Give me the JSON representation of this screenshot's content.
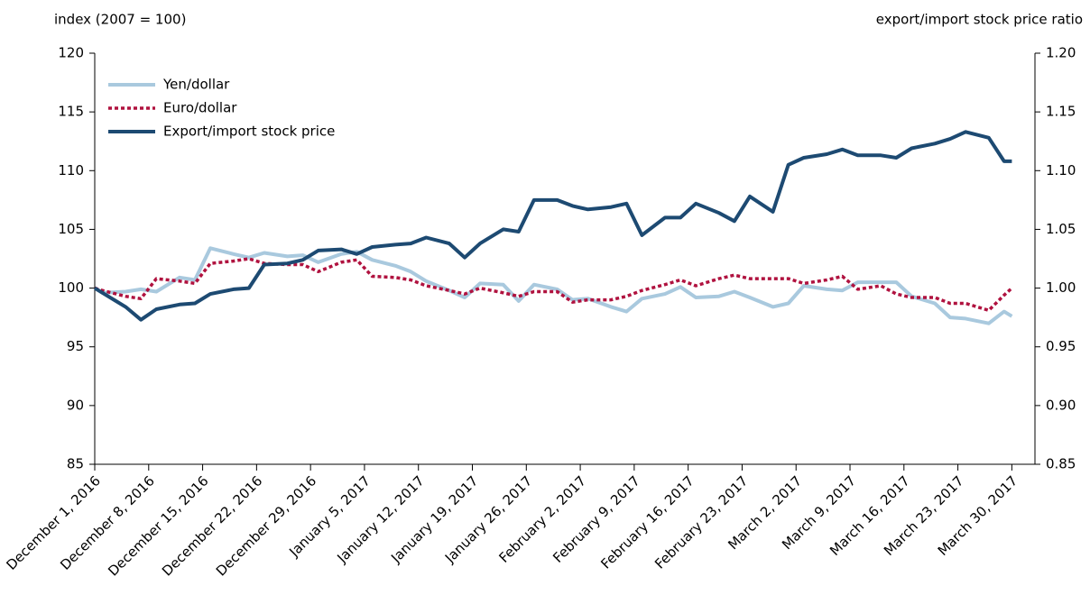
{
  "chart_data": {
    "type": "line",
    "ylabel": "index (2007 = 100)",
    "y2label": "export/import stock price ratio",
    "x": [
      "2016-12-01",
      "2016-12-02",
      "2016-12-05",
      "2016-12-07",
      "2016-12-09",
      "2016-12-12",
      "2016-12-14",
      "2016-12-16",
      "2016-12-19",
      "2016-12-21",
      "2016-12-23",
      "2016-12-26",
      "2016-12-28",
      "2016-12-30",
      "2017-01-02",
      "2017-01-04",
      "2017-01-06",
      "2017-01-09",
      "2017-01-11",
      "2017-01-13",
      "2017-01-16",
      "2017-01-18",
      "2017-01-20",
      "2017-01-23",
      "2017-01-25",
      "2017-01-27",
      "2017-01-30",
      "2017-02-01",
      "2017-02-03",
      "2017-02-06",
      "2017-02-08",
      "2017-02-10",
      "2017-02-13",
      "2017-02-15",
      "2017-02-17",
      "2017-02-20",
      "2017-02-22",
      "2017-02-24",
      "2017-02-27",
      "2017-03-01",
      "2017-03-03",
      "2017-03-06",
      "2017-03-08",
      "2017-03-10",
      "2017-03-13",
      "2017-03-15",
      "2017-03-17",
      "2017-03-20",
      "2017-03-22",
      "2017-03-24",
      "2017-03-27",
      "2017-03-29",
      "2017-03-30"
    ],
    "series": [
      {
        "name": "Yen/dollar",
        "color": "#a9c9de",
        "style": "solid",
        "axis": "y",
        "values": [
          100,
          99.6,
          99.7,
          99.9,
          99.7,
          100.9,
          100.7,
          103.4,
          102.9,
          102.6,
          103.0,
          102.7,
          102.8,
          102.2,
          102.9,
          103.1,
          102.4,
          101.9,
          101.4,
          100.6,
          99.8,
          99.2,
          100.4,
          100.3,
          98.9,
          100.3,
          99.9,
          99.0,
          99.1,
          98.4,
          98.0,
          99.1,
          99.5,
          100.1,
          99.2,
          99.3,
          99.7,
          99.2,
          98.4,
          98.7,
          100.2,
          99.9,
          99.8,
          100.5,
          100.5,
          100.5,
          99.3,
          98.7,
          97.5,
          97.4,
          97.0,
          98.0,
          97.6
        ]
      },
      {
        "name": "Euro/dollar",
        "color": "#b0123f",
        "style": "dotted",
        "axis": "y",
        "values": [
          100,
          99.8,
          99.3,
          99.1,
          100.8,
          100.6,
          100.4,
          102.1,
          102.3,
          102.5,
          102.1,
          102.0,
          102.0,
          101.4,
          102.2,
          102.4,
          101.0,
          100.9,
          100.7,
          100.2,
          99.8,
          99.5,
          100.0,
          99.6,
          99.3,
          99.7,
          99.7,
          98.8,
          99.0,
          99.0,
          99.3,
          99.8,
          100.3,
          100.7,
          100.2,
          100.8,
          101.1,
          100.8,
          100.8,
          100.8,
          100.4,
          100.7,
          101.0,
          99.9,
          100.2,
          99.5,
          99.2,
          99.2,
          98.7,
          98.7,
          98.1,
          99.4,
          100.0
        ]
      },
      {
        "name": "Export/import stock price",
        "color": "#1d4a72",
        "style": "solid",
        "axis": "y2",
        "values": [
          1.0,
          0.996,
          0.984,
          0.973,
          0.982,
          0.986,
          0.987,
          0.995,
          0.999,
          1.0,
          1.02,
          1.021,
          1.024,
          1.032,
          1.033,
          1.029,
          1.035,
          1.037,
          1.038,
          1.043,
          1.038,
          1.026,
          1.038,
          1.05,
          1.048,
          1.075,
          1.075,
          1.07,
          1.067,
          1.069,
          1.072,
          1.045,
          1.06,
          1.06,
          1.072,
          1.064,
          1.057,
          1.078,
          1.065,
          1.105,
          1.111,
          1.114,
          1.118,
          1.113,
          1.113,
          1.111,
          1.119,
          1.123,
          1.127,
          1.133,
          1.128,
          1.108,
          1.108
        ]
      }
    ],
    "xlim": [
      "2016-12-01",
      "2017-04-02"
    ],
    "xticks": [
      {
        "value": "2016-12-01",
        "label": "December 1, 2016"
      },
      {
        "value": "2016-12-08",
        "label": "December 8, 2016"
      },
      {
        "value": "2016-12-15",
        "label": "December 15, 2016"
      },
      {
        "value": "2016-12-22",
        "label": "December 22, 2016"
      },
      {
        "value": "2016-12-29",
        "label": "December 29, 2016"
      },
      {
        "value": "2017-01-05",
        "label": "January 5, 2017"
      },
      {
        "value": "2017-01-12",
        "label": "January 12, 2017"
      },
      {
        "value": "2017-01-19",
        "label": "January 19, 2017"
      },
      {
        "value": "2017-01-26",
        "label": "January 26, 2017"
      },
      {
        "value": "2017-02-02",
        "label": "February 2, 2017"
      },
      {
        "value": "2017-02-09",
        "label": "February 9, 2017"
      },
      {
        "value": "2017-02-16",
        "label": "February 16, 2017"
      },
      {
        "value": "2017-02-23",
        "label": "February 23, 2017"
      },
      {
        "value": "2017-03-02",
        "label": "March 2, 2017"
      },
      {
        "value": "2017-03-09",
        "label": "March 9, 2017"
      },
      {
        "value": "2017-03-16",
        "label": "March 16, 2017"
      },
      {
        "value": "2017-03-23",
        "label": "March 23, 2017"
      },
      {
        "value": "2017-03-30",
        "label": "March 30, 2017"
      }
    ],
    "ylim": [
      85,
      120
    ],
    "yticks": [
      85,
      90,
      95,
      100,
      105,
      110,
      115,
      120
    ],
    "y2lim": [
      0.85,
      1.2
    ],
    "y2ticks": [
      {
        "value": 0.85,
        "label": "0.85"
      },
      {
        "value": 0.9,
        "label": "0.90"
      },
      {
        "value": 0.95,
        "label": "0.95"
      },
      {
        "value": 1.0,
        "label": "1.00"
      },
      {
        "value": 1.05,
        "label": "1.05"
      },
      {
        "value": 1.1,
        "label": "1.10"
      },
      {
        "value": 1.15,
        "label": "1.15"
      },
      {
        "value": 1.2,
        "label": "1.20"
      }
    ],
    "grid": false,
    "legend": "upper left"
  }
}
